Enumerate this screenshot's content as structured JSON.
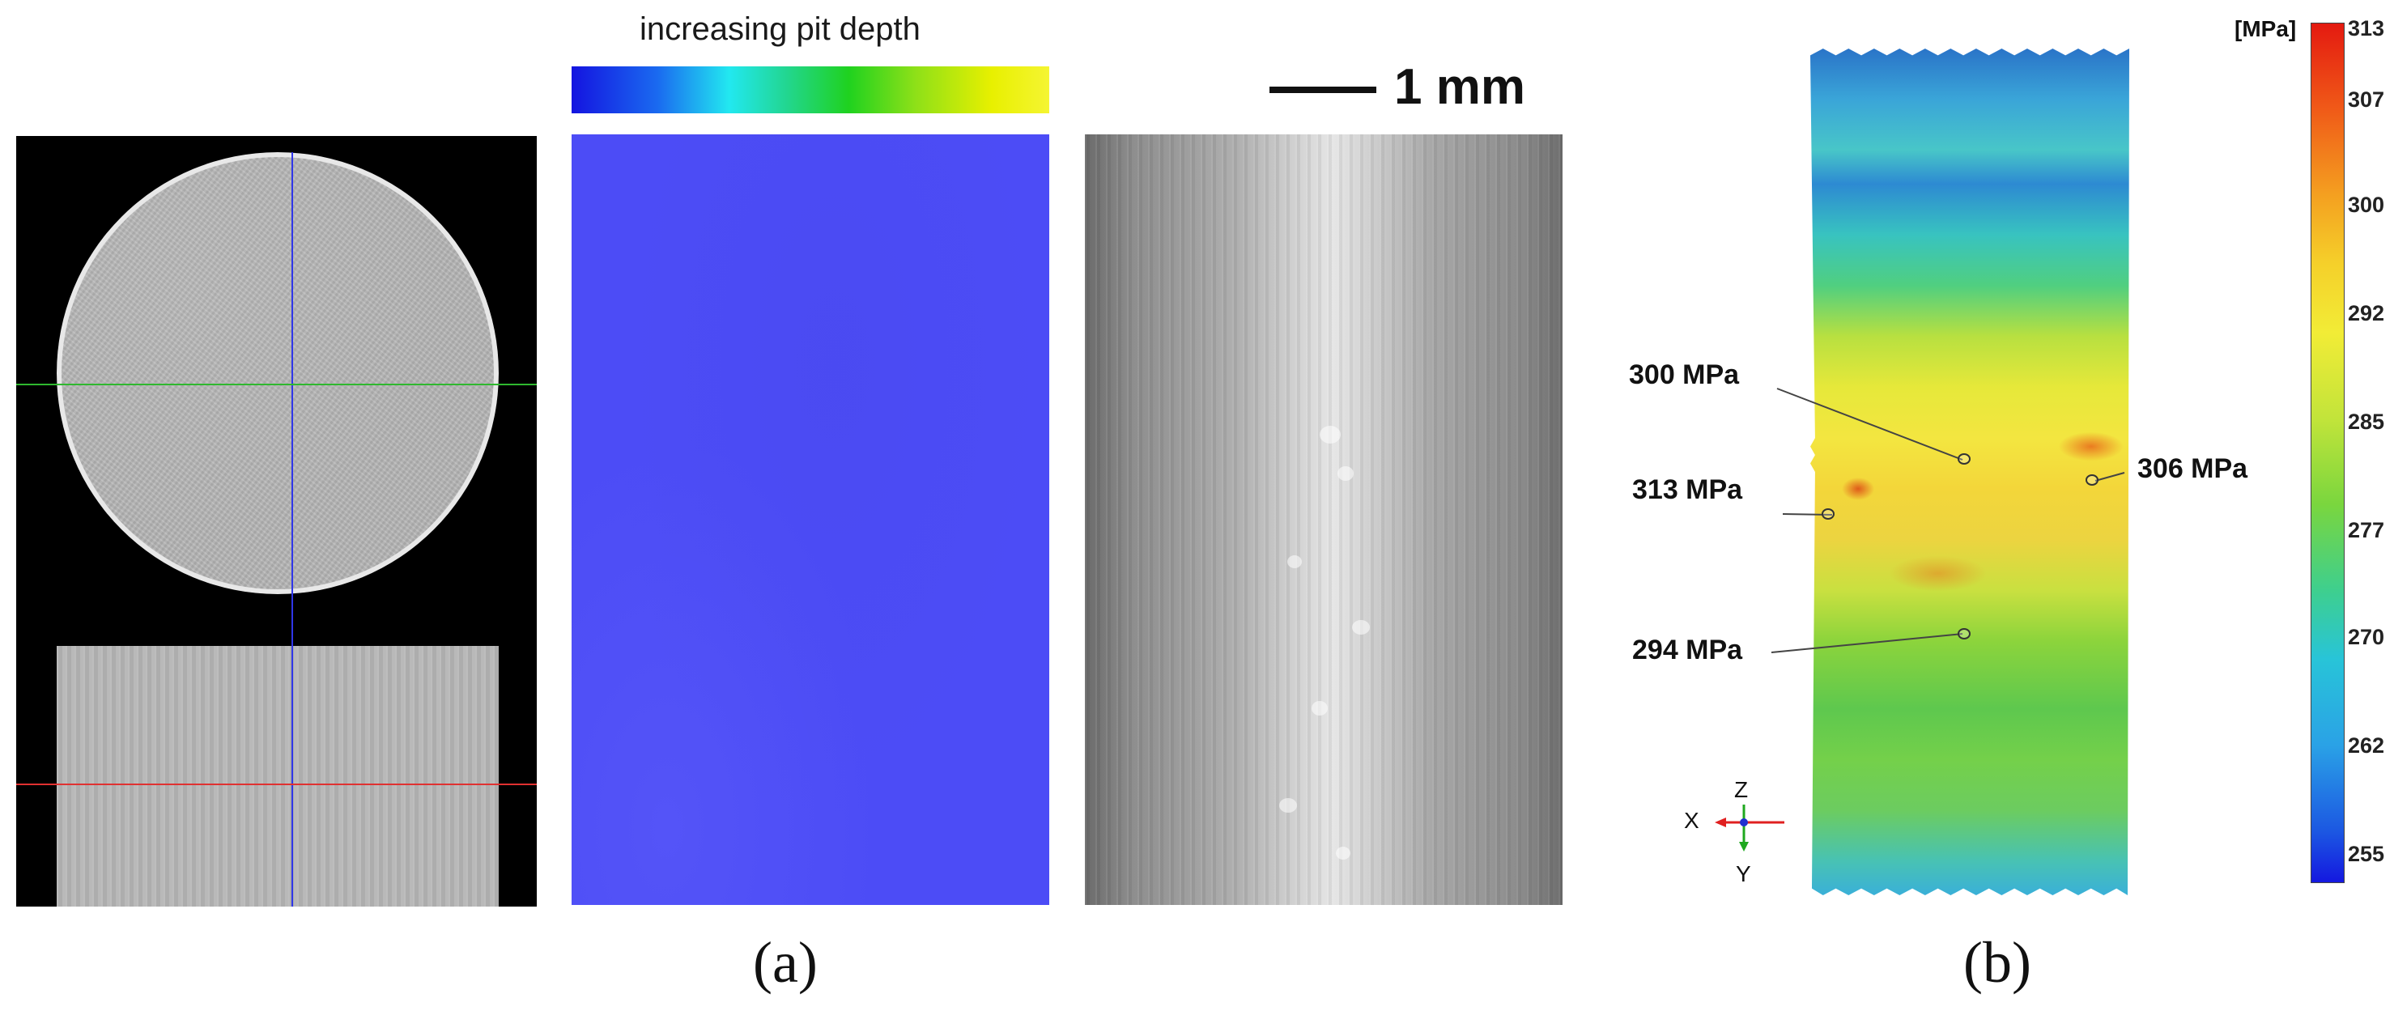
{
  "panel_a": {
    "caption": "(a)",
    "colorbar_label": "increasing pit depth",
    "scale_bar": "1 mm"
  },
  "panel_b": {
    "caption": "(b)",
    "unit": "[MPa]",
    "colorbar_ticks": [
      "313",
      "307",
      "300",
      "292",
      "285",
      "277",
      "270",
      "262",
      "255"
    ],
    "callouts": [
      "300 MPa",
      "313 MPa",
      "306 MPa",
      "294 MPa"
    ],
    "axes": {
      "z": "Z",
      "x": "X",
      "y": "Y"
    }
  },
  "colors": {
    "pit_map": "#4c4cf6",
    "ct_blue_line": "#2f36e8",
    "ct_green_line": "#2fb82f",
    "ct_red_line": "#e03131"
  }
}
